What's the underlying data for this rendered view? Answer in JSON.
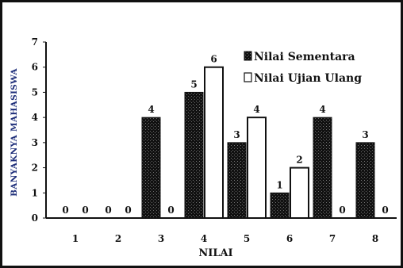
{
  "chart_data": {
    "type": "bar",
    "categories": [
      "1",
      "2",
      "3",
      "4",
      "5",
      "6",
      "7",
      "8"
    ],
    "series": [
      {
        "name": "Nilai Sementara",
        "values": [
          0,
          0,
          4,
          5,
          3,
          1,
          4,
          3
        ],
        "fill": "dark-pattern",
        "color": "#111111"
      },
      {
        "name": "Nilai Ujian Ulang",
        "values": [
          0,
          0,
          0,
          6,
          4,
          2,
          0,
          0
        ],
        "fill": "white",
        "color": "#ffffff"
      }
    ],
    "yticks": [
      "0",
      "1",
      "2",
      "3",
      "4",
      "5",
      "6",
      "7"
    ],
    "ylim": [
      0,
      7
    ],
    "xlabel": "NILAI",
    "ylabel": "BANYAKNYA MAHASISWA",
    "legend_position": "top-right",
    "grid": false,
    "colors": {
      "ylabel": "#1f2f7a",
      "bar_dark": "#111111",
      "bar_light": "#ffffff"
    }
  }
}
